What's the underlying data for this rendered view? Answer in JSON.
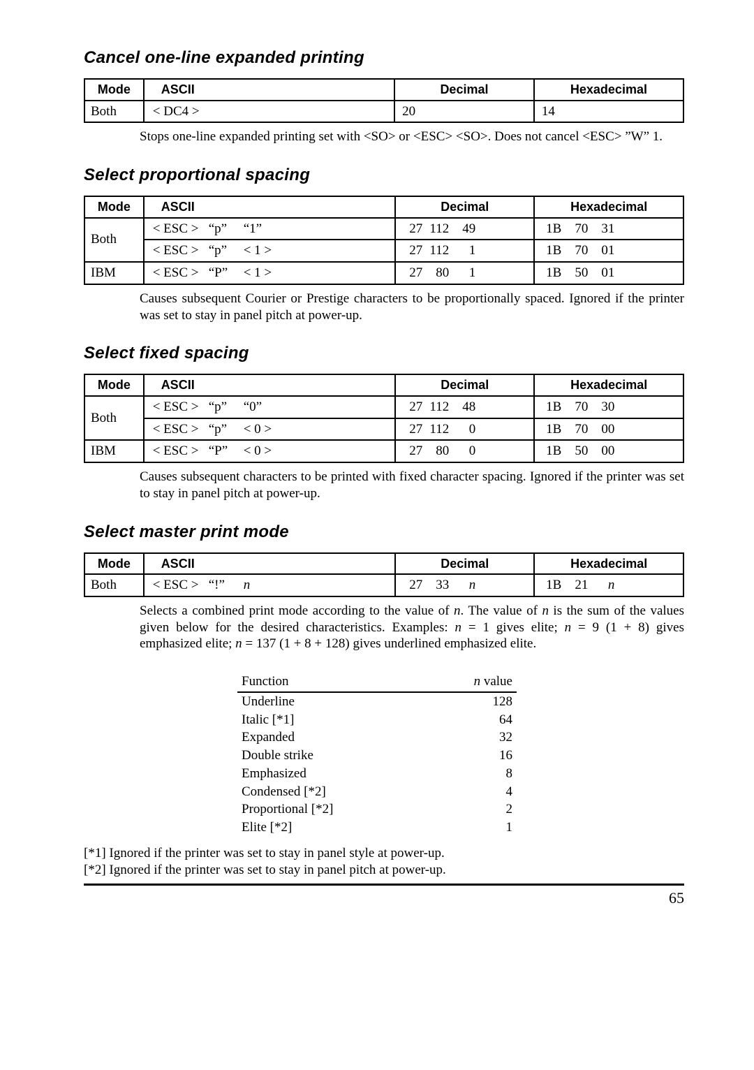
{
  "page_number": "65",
  "headers": {
    "mode": "Mode",
    "ascii": "ASCII",
    "decimal": "Decimal",
    "hex": "Hexadecimal"
  },
  "section1": {
    "title": "Cancel one-line expanded printing",
    "rows": [
      {
        "mode": "Both",
        "ascii": "< DC4 >",
        "dec": "20",
        "hex": "14"
      }
    ],
    "desc": "Stops one-line expanded printing set with <SO> or <ESC> <SO>. Does not cancel <ESC> ”W” 1."
  },
  "section2": {
    "title": "Select proportional spacing",
    "rows": [
      {
        "mode": "Both",
        "rowspan": 2,
        "a1": "< ESC >",
        "a2": "“p”",
        "a3": "“1”",
        "d1": "27",
        "d2": "112",
        "d3": "49",
        "h1": "1B",
        "h2": "70",
        "h3": "31"
      },
      {
        "a1": "< ESC >",
        "a2": "“p”",
        "a3": "< 1 >",
        "d1": "27",
        "d2": "112",
        "d3": "1",
        "h1": "1B",
        "h2": "70",
        "h3": "01"
      },
      {
        "mode": "IBM",
        "a1": "< ESC >",
        "a2": "“P”",
        "a3": "< 1 >",
        "d1": "27",
        "d2": "80",
        "d3": "1",
        "h1": "1B",
        "h2": "50",
        "h3": "01"
      }
    ],
    "desc": "Causes subsequent Courier or Prestige characters to be proportionally spaced. Ignored if the printer was set to stay in panel pitch at power-up."
  },
  "section3": {
    "title": "Select fixed spacing",
    "rows": [
      {
        "mode": "Both",
        "rowspan": 2,
        "a1": "< ESC >",
        "a2": "“p”",
        "a3": "“0”",
        "d1": "27",
        "d2": "112",
        "d3": "48",
        "h1": "1B",
        "h2": "70",
        "h3": "30"
      },
      {
        "a1": "< ESC >",
        "a2": "“p”",
        "a3": "< 0 >",
        "d1": "27",
        "d2": "112",
        "d3": "0",
        "h1": "1B",
        "h2": "70",
        "h3": "00"
      },
      {
        "mode": "IBM",
        "a1": "< ESC >",
        "a2": "“P”",
        "a3": "< 0 >",
        "d1": "27",
        "d2": "80",
        "d3": "0",
        "h1": "1B",
        "h2": "50",
        "h3": "00"
      }
    ],
    "desc": "Causes subsequent characters to be printed with fixed character spacing. Ignored if the printer was set to stay in panel pitch at power-up."
  },
  "section4": {
    "title": "Select master print mode",
    "rows": [
      {
        "mode": "Both",
        "a1": "< ESC >",
        "a2": "“!”",
        "a3": "n",
        "a3_ital": true,
        "d1": "27",
        "d2": "33",
        "d3": "n",
        "d3_ital": true,
        "h1": "1B",
        "h2": "21",
        "h3": "n",
        "h3_ital": true
      }
    ],
    "desc_pre": "Selects a combined print mode according to the value of ",
    "desc_n1": "n",
    "desc_mid1": ". The value of ",
    "desc_n2": "n",
    "desc_mid2": " is the sum of the values given below for the desired characteristics. Examples:  ",
    "desc_n3": "n",
    "desc_mid3": " = 1 gives elite; ",
    "desc_n4": "n",
    "desc_mid4": " = 9 (1 + 8) gives emphasized elite; ",
    "desc_n5": "n",
    "desc_end": " = 137 (1 + 8 + 128) gives underlined emphasized elite.",
    "nvalue_header_func": "Function",
    "nvalue_header_val_n": "n",
    "nvalue_header_val": " value",
    "nvalues": [
      {
        "func": "Underline",
        "val": "128"
      },
      {
        "func": "Italic [*1]",
        "val": "64"
      },
      {
        "func": "Expanded",
        "val": "32"
      },
      {
        "func": "Double strike",
        "val": "16"
      },
      {
        "func": "Emphasized",
        "val": "8"
      },
      {
        "func": "Condensed [*2]",
        "val": "4"
      },
      {
        "func": "Proportional [*2]",
        "val": "2"
      },
      {
        "func": "Elite [*2]",
        "val": "1"
      }
    ],
    "footnote1": "[*1] Ignored if the printer was set to stay in panel style at power-up.",
    "footnote2": "[*2] Ignored if the printer was set to stay in panel pitch at power-up."
  }
}
